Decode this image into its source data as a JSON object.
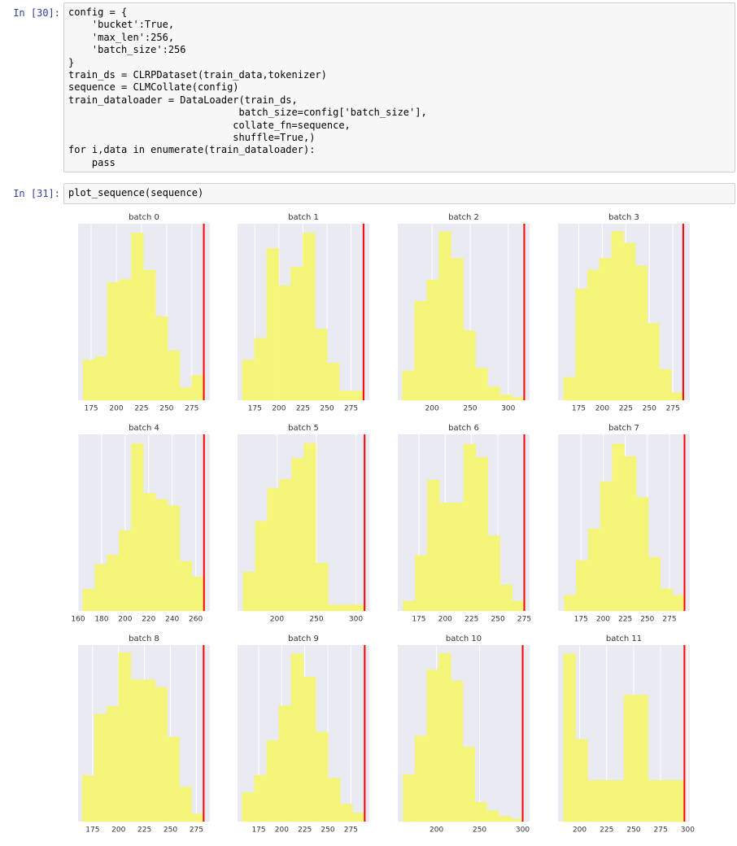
{
  "cells": [
    {
      "prompt": "In [30]:",
      "lines": [
        "config = {",
        "    'bucket':True,",
        "    'max_len':256,",
        "    'batch_size':256",
        "}",
        "train_ds = CLRPDataset(train_data,tokenizer)",
        "sequence = CLMCollate(config)",
        "train_dataloader = DataLoader(train_ds,",
        "                             batch_size=config['batch_size'],",
        "                            collate_fn=sequence,",
        "                            shuffle=True,)",
        "for i,data in enumerate(train_dataloader):",
        "    pass"
      ]
    },
    {
      "prompt": "In [31]:",
      "lines": [
        "plot_sequence(sequence)"
      ]
    }
  ],
  "chart_data": [
    {
      "type": "histogram",
      "title": "batch 0",
      "bins": [
        167,
        179,
        191,
        203,
        215,
        227,
        239,
        251,
        263,
        275,
        287
      ],
      "values": [
        13,
        14,
        38,
        39,
        54,
        42,
        27,
        16,
        4,
        8
      ],
      "xlim": [
        162,
        293
      ],
      "ylim": [
        0,
        57
      ],
      "xticks": [
        175,
        200,
        225,
        250,
        275
      ],
      "vline": 287,
      "color": "#f5f57a",
      "vline_color": "#ff0000",
      "grid": true
    },
    {
      "type": "histogram",
      "title": "batch 1",
      "bins": [
        162,
        174.6,
        187.2,
        199.8,
        212.4,
        225,
        237.6,
        250.2,
        262.8,
        275.4,
        288
      ],
      "values": [
        13,
        20,
        49,
        37,
        43,
        54,
        23,
        12,
        3,
        3
      ],
      "xlim": [
        157,
        294
      ],
      "ylim": [
        0,
        57
      ],
      "xticks": [
        175,
        200,
        225,
        250,
        275
      ],
      "vline": 288,
      "color": "#f5f57a",
      "vline_color": "#ff0000",
      "grid": true
    },
    {
      "type": "histogram",
      "title": "batch 2",
      "bins": [
        161,
        177,
        193,
        209,
        225,
        241,
        257,
        273,
        289,
        305,
        321
      ],
      "values": [
        11,
        37,
        45,
        63,
        53,
        26,
        12,
        5,
        2,
        1
      ],
      "xlim": [
        155,
        328
      ],
      "ylim": [
        0,
        66
      ],
      "xticks": [
        200,
        250,
        300
      ],
      "vline": 321,
      "color": "#f5f57a",
      "vline_color": "#ff0000",
      "grid": true
    },
    {
      "type": "histogram",
      "title": "batch 3",
      "bins": [
        159,
        171.7,
        184.4,
        197.1,
        209.8,
        222.5,
        235.2,
        247.9,
        260.6,
        273.3,
        286
      ],
      "values": [
        6,
        29,
        34,
        37,
        44,
        41,
        35,
        20,
        8,
        2
      ],
      "xlim": [
        153,
        293
      ],
      "ylim": [
        0,
        46
      ],
      "xticks": [
        175,
        200,
        225,
        250,
        275
      ],
      "vline": 286,
      "color": "#f5f57a",
      "vline_color": "#ff0000",
      "grid": true
    },
    {
      "type": "histogram",
      "title": "batch 4",
      "bins": [
        164,
        174.3,
        184.6,
        194.9,
        205.2,
        215.5,
        225.8,
        236.1,
        246.4,
        256.7,
        267
      ],
      "values": [
        7,
        15,
        18,
        26,
        54,
        38,
        36,
        34,
        16,
        11
      ],
      "xlim": [
        160,
        272
      ],
      "ylim": [
        0,
        57
      ],
      "xticks": [
        160,
        180,
        200,
        220,
        240,
        260
      ],
      "vline": 267,
      "color": "#f5f57a",
      "vline_color": "#ff0000",
      "grid": true
    },
    {
      "type": "histogram",
      "title": "batch 5",
      "bins": [
        157,
        172.4,
        187.8,
        203.2,
        218.6,
        234,
        249.4,
        264.8,
        280.2,
        295.6,
        311
      ],
      "values": [
        13,
        30,
        41,
        44,
        51,
        56,
        16,
        2,
        2,
        2
      ],
      "xlim": [
        150,
        317
      ],
      "ylim": [
        0,
        59
      ],
      "xticks": [
        200,
        250,
        300
      ],
      "vline": 311,
      "color": "#f5f57a",
      "vline_color": "#ff0000",
      "grid": true
    },
    {
      "type": "histogram",
      "title": "batch 6",
      "bins": [
        160,
        171.5,
        183,
        194.5,
        206,
        217.5,
        229,
        240.5,
        252,
        263.5,
        275
      ],
      "values": [
        3,
        17,
        40,
        33,
        33,
        51,
        47,
        23,
        8,
        3
      ],
      "xlim": [
        155,
        280
      ],
      "ylim": [
        0,
        54
      ],
      "xticks": [
        175,
        200,
        225,
        250,
        275
      ],
      "vline": 275,
      "color": "#f5f57a",
      "vline_color": "#ff0000",
      "grid": true
    },
    {
      "type": "histogram",
      "title": "batch 7",
      "bins": [
        156,
        169.6,
        183.2,
        196.8,
        210.4,
        224,
        237.6,
        251.2,
        264.8,
        278.4,
        292
      ],
      "values": [
        5,
        16,
        26,
        41,
        53,
        49,
        36,
        17,
        7,
        5
      ],
      "xlim": [
        149,
        298
      ],
      "ylim": [
        0,
        56
      ],
      "xticks": [
        175,
        200,
        225,
        250,
        275
      ],
      "vline": 292,
      "color": "#f5f57a",
      "vline_color": "#ff0000",
      "grid": true
    },
    {
      "type": "histogram",
      "title": "batch 8",
      "bins": [
        165,
        176.7,
        188.4,
        200.1,
        211.8,
        223.5,
        235.2,
        246.9,
        258.6,
        270.3,
        282
      ],
      "values": [
        12,
        28,
        30,
        44,
        37,
        37,
        35,
        22,
        9,
        2
      ],
      "xlim": [
        161,
        288
      ],
      "ylim": [
        0,
        46
      ],
      "xticks": [
        175,
        200,
        225,
        250,
        275
      ],
      "vline": 282,
      "color": "#f5f57a",
      "vline_color": "#ff0000",
      "grid": true
    },
    {
      "type": "histogram",
      "title": "batch 9",
      "bins": [
        157,
        170.3,
        183.6,
        196.9,
        210.2,
        223.5,
        236.8,
        250.1,
        263.4,
        276.7,
        290
      ],
      "values": [
        10,
        16,
        28,
        40,
        58,
        50,
        31,
        15,
        6,
        3
      ],
      "xlim": [
        152,
        295
      ],
      "ylim": [
        0,
        61
      ],
      "xticks": [
        175,
        200,
        225,
        250,
        275
      ],
      "vline": 290,
      "color": "#f5f57a",
      "vline_color": "#ff0000",
      "grid": true
    },
    {
      "type": "histogram",
      "title": "batch 10",
      "bins": [
        161,
        174.9,
        188.8,
        202.7,
        216.6,
        230.5,
        244.4,
        258.3,
        272.2,
        286.1,
        300
      ],
      "values": [
        17,
        31,
        55,
        61,
        51,
        27,
        7,
        4,
        2,
        1
      ],
      "xlim": [
        155,
        308
      ],
      "ylim": [
        0,
        64
      ],
      "xticks": [
        200,
        250,
        300
      ],
      "vline": 300,
      "color": "#f5f57a",
      "vline_color": "#ff0000",
      "grid": true
    },
    {
      "type": "histogram",
      "title": "batch 11",
      "bins": [
        185,
        196.2,
        207.4,
        218.6,
        229.8,
        241,
        252.2,
        263.4,
        274.6,
        285.8,
        297
      ],
      "values": [
        57,
        28,
        14,
        14,
        14,
        43,
        43,
        14,
        14,
        14
      ],
      "xlim": [
        180,
        302
      ],
      "ylim": [
        0,
        60
      ],
      "xticks": [
        200,
        225,
        250,
        275,
        300
      ],
      "vline": 297,
      "color": "#f5f57a",
      "vline_color": "#ff0000",
      "grid": true
    }
  ]
}
